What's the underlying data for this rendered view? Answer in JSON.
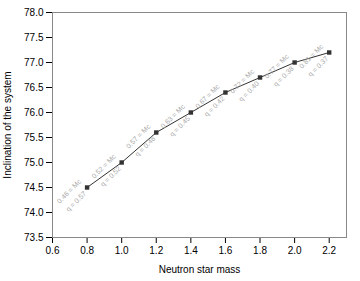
{
  "chart_data": {
    "type": "line",
    "xlabel": "Neutron star mass",
    "ylabel": "Inclination of the system",
    "x": [
      0.8,
      1.0,
      1.2,
      1.4,
      1.6,
      1.8,
      2.0,
      2.2
    ],
    "values": [
      74.5,
      75.0,
      75.6,
      76.0,
      76.4,
      76.7,
      77.0,
      77.2
    ],
    "color": "#333333",
    "marker": "square",
    "xlim": [
      0.6,
      2.3
    ],
    "ylim": [
      73.5,
      78.0
    ],
    "xticks": [
      0.6,
      0.8,
      {
        "value": 1.0,
        "label": "1.0"
      },
      1.2,
      1.4,
      1.6,
      1.8,
      {
        "value": 2.0,
        "label": "2.0"
      },
      2.2
    ],
    "yticks": [
      73.5,
      {
        "value": 74.0,
        "label": "74.0"
      },
      74.5,
      {
        "value": 75.0,
        "label": "75.0"
      },
      75.5,
      {
        "value": 76.0,
        "label": "76.0"
      },
      76.5,
      {
        "value": 77.0,
        "label": "77.0"
      },
      77.5,
      {
        "value": 78.0,
        "label": "78.0"
      }
    ],
    "annotations": [
      {
        "x": 0.8,
        "y": 74.5,
        "text": "0.46 = Mc",
        "color": "#aaaaaa"
      },
      {
        "x": 0.8,
        "y": 74.5,
        "text": "q = 0.57",
        "color": "#aaaaaa"
      },
      {
        "x": 1.0,
        "y": 75.0,
        "text": "0.52 = Mc",
        "color": "#aaaaaa"
      },
      {
        "x": 1.0,
        "y": 75.0,
        "text": "q = 0.52",
        "color": "#aaaaaa"
      },
      {
        "x": 1.2,
        "y": 75.6,
        "text": "0.57 = Mc",
        "color": "#aaaaaa"
      },
      {
        "x": 1.2,
        "y": 75.6,
        "text": "q = 0.48",
        "color": "#aaaaaa"
      },
      {
        "x": 1.4,
        "y": 76.0,
        "text": "0.63 = Mc",
        "color": "#aaaaaa"
      },
      {
        "x": 1.4,
        "y": 76.0,
        "text": "q = 0.45",
        "color": "#aaaaaa"
      },
      {
        "x": 1.6,
        "y": 76.4,
        "text": "0.67 = Mc",
        "color": "#aaaaaa"
      },
      {
        "x": 1.6,
        "y": 76.4,
        "text": "q = 0.42",
        "color": "#aaaaaa"
      },
      {
        "x": 1.8,
        "y": 76.7,
        "text": "0.72 = Mc",
        "color": "#aaaaaa"
      },
      {
        "x": 1.8,
        "y": 76.7,
        "text": "q = 0.40",
        "color": "#aaaaaa"
      },
      {
        "x": 2.0,
        "y": 77.0,
        "text": "0.77 = Mc",
        "color": "#aaaaaa"
      },
      {
        "x": 2.0,
        "y": 77.0,
        "text": "q = 0.38",
        "color": "#aaaaaa"
      },
      {
        "x": 2.2,
        "y": 77.2,
        "text": "0.81 = Mc",
        "color": "#aaaaaa"
      },
      {
        "x": 2.2,
        "y": 77.2,
        "text": "q = 0.37",
        "color": "#aaaaaa"
      }
    ]
  }
}
